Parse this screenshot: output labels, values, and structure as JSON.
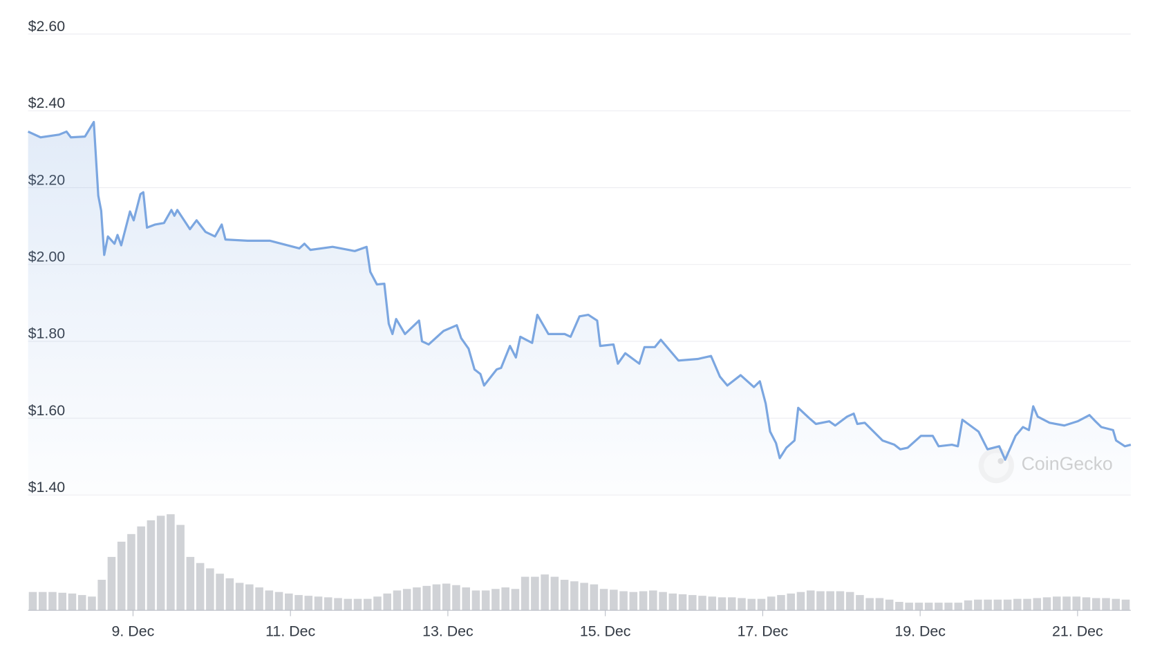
{
  "chart_data": {
    "type": "line",
    "x": [
      7.667,
      7.826,
      8.061,
      8.155,
      8.211,
      8.39,
      8.502,
      8.559,
      8.596,
      8.634,
      8.681,
      8.765,
      8.803,
      8.85,
      8.962,
      9.009,
      9.094,
      9.131,
      9.178,
      9.282,
      9.394,
      9.488,
      9.526,
      9.563,
      9.723,
      9.808,
      9.92,
      10.042,
      10.127,
      10.174,
      10.455,
      10.737,
      11.113,
      11.178,
      11.254,
      11.535,
      11.817,
      11.967,
      12.014,
      12.099,
      12.193,
      12.249,
      12.296,
      12.343,
      12.456,
      12.634,
      12.672,
      12.756,
      12.944,
      13.113,
      13.169,
      13.263,
      13.338,
      13.413,
      13.46,
      13.62,
      13.676,
      13.789,
      13.864,
      13.92,
      14.071,
      14.136,
      14.277,
      14.484,
      14.559,
      14.672,
      14.784,
      14.897,
      14.935,
      15.104,
      15.16,
      15.254,
      15.432,
      15.498,
      15.629,
      15.705,
      15.93,
      16.174,
      16.343,
      16.456,
      16.55,
      16.719,
      16.888,
      16.963,
      17.038,
      17.094,
      17.169,
      17.216,
      17.301,
      17.404,
      17.451,
      17.592,
      17.676,
      17.845,
      17.921,
      18.071,
      18.156,
      18.202,
      18.296,
      18.522,
      18.672,
      18.747,
      18.841,
      19.01,
      19.16,
      19.235,
      19.404,
      19.479,
      19.536,
      19.742,
      19.855,
      20.005,
      20.08,
      20.212,
      20.306,
      20.381,
      20.437,
      20.494,
      20.644,
      20.832,
      21.001,
      21.151,
      21.226,
      21.301,
      21.451,
      21.489,
      21.601,
      21.676
    ],
    "series": [
      {
        "color": "#7ba6e0",
        "values": [
          2.346,
          2.331,
          2.338,
          2.346,
          2.331,
          2.333,
          2.371,
          2.179,
          2.14,
          2.025,
          2.073,
          2.054,
          2.077,
          2.05,
          2.138,
          2.115,
          2.183,
          2.188,
          2.096,
          2.104,
          2.108,
          2.142,
          2.127,
          2.142,
          2.092,
          2.115,
          2.085,
          2.073,
          2.104,
          2.065,
          2.062,
          2.062,
          2.042,
          2.054,
          2.038,
          2.046,
          2.035,
          2.046,
          1.981,
          1.948,
          1.95,
          1.846,
          1.819,
          1.858,
          1.819,
          1.854,
          1.8,
          1.792,
          1.827,
          1.842,
          1.808,
          1.781,
          1.727,
          1.715,
          1.685,
          1.727,
          1.731,
          1.788,
          1.758,
          1.812,
          1.796,
          1.869,
          1.819,
          1.819,
          1.812,
          1.865,
          1.869,
          1.854,
          1.788,
          1.792,
          1.742,
          1.769,
          1.742,
          1.785,
          1.785,
          1.804,
          1.75,
          1.754,
          1.762,
          1.708,
          1.685,
          1.712,
          1.681,
          1.696,
          1.638,
          1.565,
          1.535,
          1.496,
          1.523,
          1.542,
          1.627,
          1.6,
          1.585,
          1.592,
          1.581,
          1.604,
          1.612,
          1.585,
          1.588,
          1.542,
          1.531,
          1.519,
          1.523,
          1.554,
          1.554,
          1.527,
          1.531,
          1.527,
          1.596,
          1.565,
          1.519,
          1.527,
          1.492,
          1.554,
          1.577,
          1.569,
          1.631,
          1.604,
          1.588,
          1.581,
          1.592,
          1.608,
          1.592,
          1.577,
          1.569,
          1.542,
          1.527,
          1.531
        ]
      }
    ],
    "xlim": [
      7.667,
      21.676
    ],
    "xticks": [
      {
        "value": 9,
        "label": "9. Dec"
      },
      {
        "value": 11,
        "label": "11. Dec"
      },
      {
        "value": 13,
        "label": "13. Dec"
      },
      {
        "value": 15,
        "label": "15. Dec"
      },
      {
        "value": 17,
        "label": "17. Dec"
      },
      {
        "value": 19,
        "label": "19. Dec"
      },
      {
        "value": 21,
        "label": "21. Dec"
      }
    ],
    "ylim": [
      1.4,
      2.6
    ],
    "yticks": [
      {
        "value": 1.4,
        "label": "$1.40"
      },
      {
        "value": 1.6,
        "label": "$1.60"
      },
      {
        "value": 1.8,
        "label": "$1.80"
      },
      {
        "value": 2.0,
        "label": "$2.00"
      },
      {
        "value": 2.2,
        "label": "$2.20"
      },
      {
        "value": 2.4,
        "label": "$2.40"
      },
      {
        "value": 2.6,
        "label": "$2.60"
      }
    ],
    "grid": true,
    "volume": {
      "color": "#d0d2d6",
      "values": [
        24,
        24,
        24,
        23,
        22,
        20,
        18,
        40,
        70,
        90,
        100,
        110,
        118,
        124,
        126,
        112,
        70,
        62,
        55,
        48,
        42,
        36,
        34,
        30,
        26,
        24,
        22,
        20,
        19,
        18,
        17,
        16,
        15,
        15,
        15,
        18,
        22,
        26,
        28,
        30,
        32,
        34,
        35,
        33,
        30,
        26,
        26,
        28,
        30,
        28,
        44,
        44,
        47,
        44,
        40,
        38,
        36,
        34,
        28,
        27,
        25,
        24,
        25,
        26,
        24,
        22,
        21,
        20,
        19,
        18,
        17,
        17,
        16,
        15,
        15,
        18,
        20,
        22,
        24,
        26,
        25,
        25,
        25,
        24,
        20,
        16,
        16,
        14,
        11,
        10,
        10,
        10,
        10,
        10,
        10,
        13,
        14,
        14,
        14,
        14,
        15,
        15,
        16,
        17,
        18,
        18,
        18,
        17,
        16,
        16,
        15,
        14
      ]
    },
    "watermark": "CoinGecko"
  }
}
